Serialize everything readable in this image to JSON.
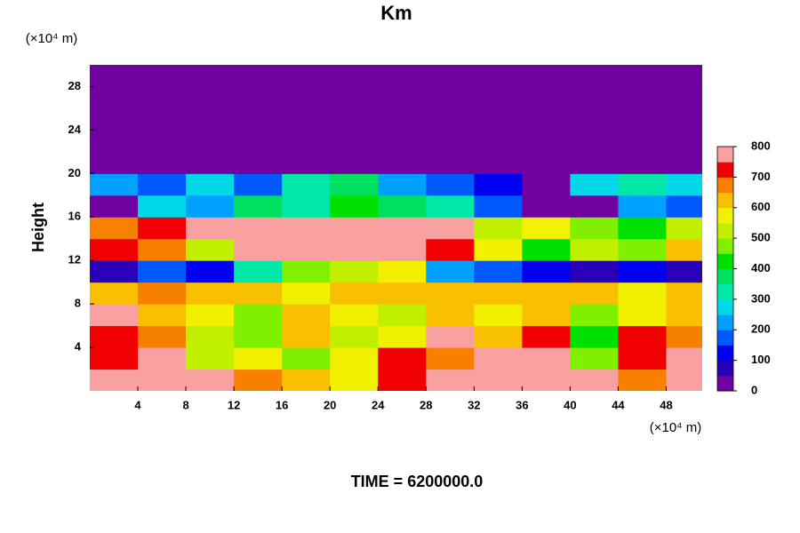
{
  "chart_data": {
    "type": "contour",
    "title": "Km",
    "y_label": "Height",
    "x_unit": "(×10⁴ m)",
    "y_unit": "(×10⁴ m)",
    "footer": "TIME = 6200000.0",
    "xlim": [
      0,
      51
    ],
    "ylim": [
      0,
      30
    ],
    "xticks": [
      4,
      8,
      12,
      16,
      20,
      24,
      28,
      32,
      36,
      40,
      44,
      48
    ],
    "yticks": [
      4,
      8,
      12,
      16,
      20,
      24,
      28
    ],
    "x": [
      2,
      6,
      10,
      14,
      18,
      22,
      26,
      30,
      34,
      38,
      42,
      46,
      50
    ],
    "y": [
      1,
      3,
      5,
      7,
      9,
      11,
      13,
      15,
      17,
      19,
      21,
      23,
      25,
      27,
      29
    ],
    "z": [
      [
        800,
        750,
        800,
        650,
        600,
        550,
        700,
        800,
        750,
        800,
        800,
        650,
        800
      ],
      [
        700,
        750,
        500,
        550,
        450,
        550,
        700,
        650,
        800,
        750,
        450,
        700,
        750
      ],
      [
        700,
        650,
        500,
        450,
        600,
        500,
        550,
        750,
        600,
        700,
        400,
        700,
        650
      ],
      [
        750,
        600,
        550,
        450,
        600,
        550,
        500,
        600,
        550,
        600,
        450,
        550,
        600
      ],
      [
        600,
        650,
        600,
        600,
        550,
        600,
        600,
        600,
        600,
        600,
        600,
        550,
        600
      ],
      [
        50,
        150,
        100,
        300,
        450,
        500,
        550,
        200,
        150,
        100,
        50,
        100,
        50
      ],
      [
        700,
        650,
        500,
        800,
        800,
        800,
        800,
        700,
        550,
        400,
        500,
        450,
        600
      ],
      [
        650,
        700,
        800,
        800,
        800,
        800,
        800,
        750,
        500,
        550,
        450,
        400,
        500
      ],
      [
        0,
        250,
        200,
        350,
        300,
        400,
        350,
        300,
        150,
        0,
        0,
        200,
        150
      ],
      [
        200,
        150,
        250,
        150,
        300,
        350,
        200,
        150,
        100,
        0,
        250,
        300,
        250
      ],
      [
        0,
        0,
        0,
        0,
        0,
        0,
        0,
        0,
        0,
        0,
        0,
        0,
        0
      ],
      [
        0,
        0,
        0,
        0,
        0,
        0,
        0,
        0,
        0,
        0,
        0,
        0,
        0
      ],
      [
        0,
        0,
        0,
        0,
        0,
        0,
        0,
        0,
        0,
        0,
        0,
        0,
        0
      ],
      [
        0,
        0,
        0,
        0,
        0,
        0,
        0,
        0,
        0,
        0,
        0,
        0,
        0
      ],
      [
        0,
        0,
        0,
        0,
        0,
        0,
        0,
        0,
        0,
        0,
        0,
        0,
        0
      ]
    ],
    "colorscale": {
      "range": [
        0,
        800
      ],
      "ticks": [
        0,
        100,
        200,
        300,
        400,
        500,
        600,
        700,
        800
      ],
      "colors": [
        "#7000a0",
        "#2800b8",
        "#0000f0",
        "#0058ff",
        "#00a0ff",
        "#00d8e8",
        "#00e8a8",
        "#00e060",
        "#00e000",
        "#80f000",
        "#c0f000",
        "#f0f000",
        "#f8c000",
        "#f88000",
        "#f00000",
        "#f8a0a0"
      ]
    }
  }
}
